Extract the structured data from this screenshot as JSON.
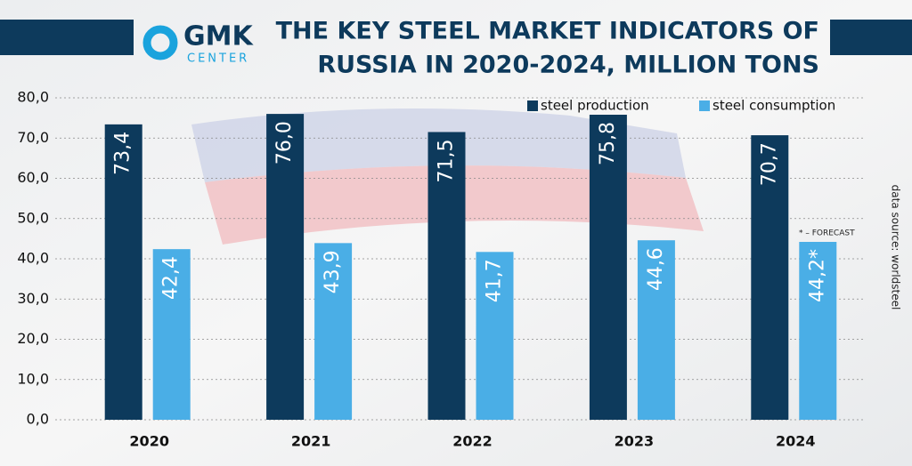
{
  "logo": {
    "name": "GMK",
    "subname": "CENTER"
  },
  "chart_data": {
    "type": "bar",
    "title": [
      "THE KEY STEEL MARKET INDICATORS OF",
      "RUSSIA IN 2020-2024, MILLION TONS"
    ],
    "categories": [
      "2020",
      "2021",
      "2022",
      "2023",
      "2024"
    ],
    "series": [
      {
        "name": "steel production",
        "color": "#0d3a5c",
        "values": [
          73.4,
          76.0,
          71.5,
          75.8,
          70.7
        ],
        "value_labels": [
          "73,4",
          "76,0",
          "71,5",
          "75,8",
          "70,7"
        ]
      },
      {
        "name": "steel consumption",
        "color": "#4aaee6",
        "values": [
          42.4,
          43.9,
          41.7,
          44.6,
          44.2
        ],
        "value_labels": [
          "42,4",
          "43,9",
          "41,7",
          "44,6",
          "44,2*"
        ]
      }
    ],
    "ylim": [
      0,
      80
    ],
    "yticks": [
      {
        "value": 0,
        "label": "0,0"
      },
      {
        "value": 10,
        "label": "10,0"
      },
      {
        "value": 20,
        "label": "20,0"
      },
      {
        "value": 30,
        "label": "30,0"
      },
      {
        "value": 40,
        "label": "40,0"
      },
      {
        "value": 50,
        "label": "50,0"
      },
      {
        "value": 60,
        "label": "60,0"
      },
      {
        "value": 70,
        "label": "70,0"
      },
      {
        "value": 80,
        "label": "80,0"
      }
    ],
    "grid": true,
    "note": "* – FORECAST",
    "source": "data source: worldsteel"
  }
}
